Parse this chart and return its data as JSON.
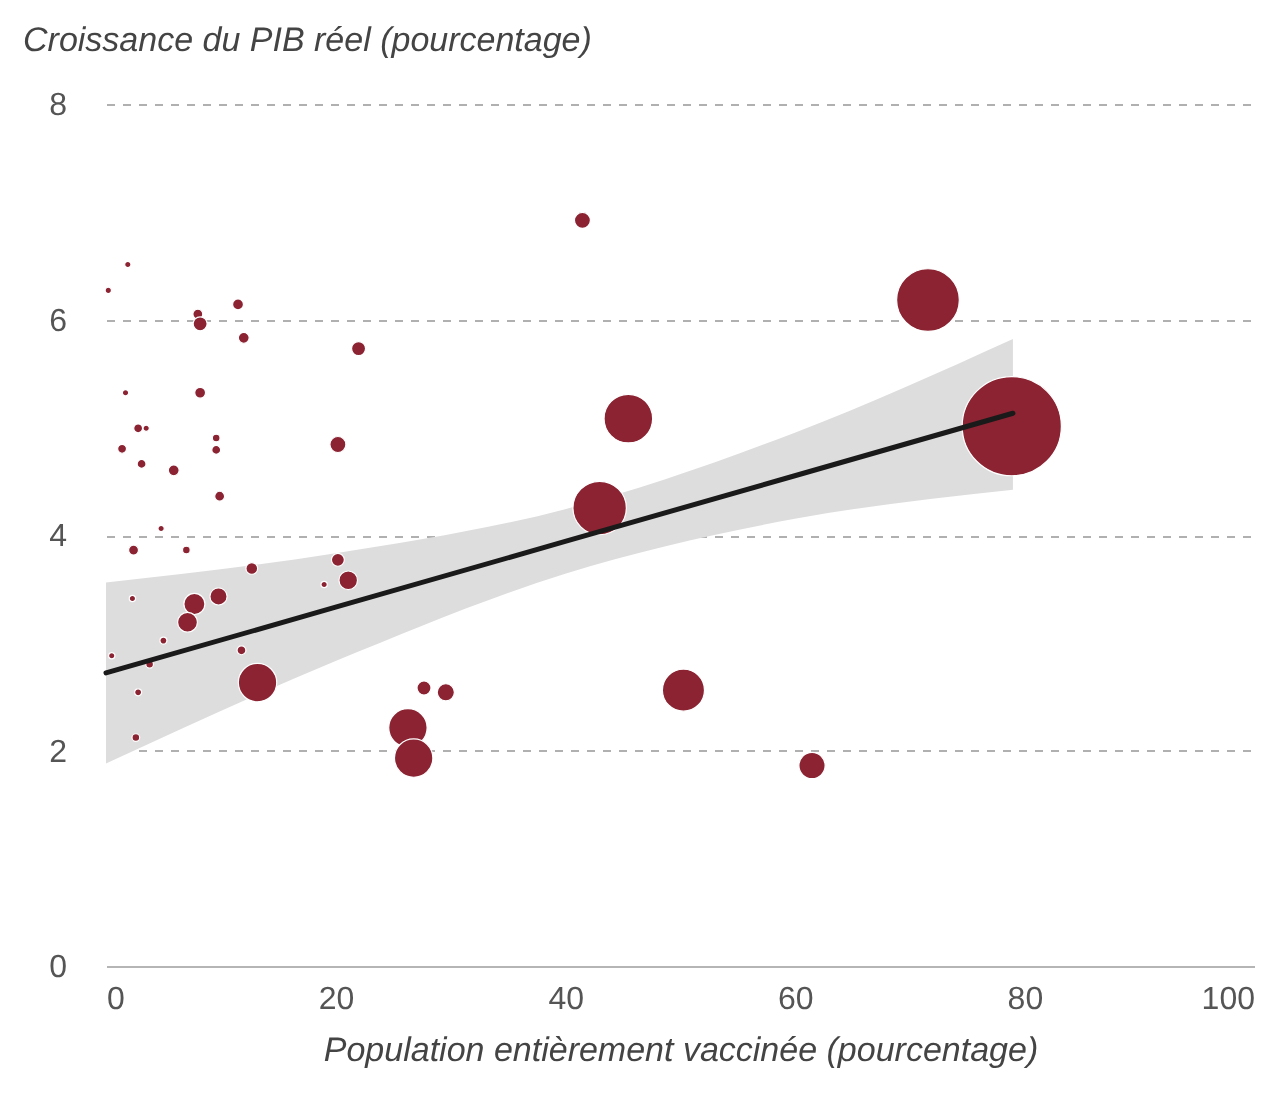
{
  "chart_data": {
    "type": "bubble",
    "ylabel": "Croissance du PIB réel (pourcentage)",
    "xlabel": "Population entièrement vaccinée (pourcentage)",
    "xlim": [
      0,
      100
    ],
    "xticks": [
      0,
      20,
      40,
      60,
      80,
      100
    ],
    "ylim": [
      0,
      8
    ],
    "yticks": [
      0,
      2,
      4,
      6,
      8
    ],
    "grid": "y",
    "series": [
      {
        "type": "bubble",
        "color": "#8b2332",
        "x": [
          1.9,
          0.2,
          8.0,
          8.2,
          11.5,
          12.0,
          22.0,
          1.7,
          8.2,
          2.8,
          3.5,
          9.6,
          1.4,
          9.6,
          20.2,
          3.1,
          5.9,
          9.9,
          4.8,
          2.4,
          7.0,
          12.7,
          20.2,
          21.1,
          19.0,
          2.3,
          9.8,
          7.7,
          7.1,
          5.0,
          0.5,
          3.8,
          11.8,
          13.2,
          2.8,
          2.6,
          27.7,
          29.6,
          26.3,
          26.8,
          41.5,
          45.5,
          43.0,
          71.6,
          78.9,
          61.5,
          50.3
        ],
        "values": [
          6.51,
          6.27,
          6.05,
          5.96,
          6.14,
          5.83,
          5.73,
          5.32,
          5.32,
          4.99,
          4.99,
          4.9,
          4.8,
          4.79,
          4.84,
          4.66,
          4.6,
          4.36,
          4.06,
          3.86,
          3.86,
          3.69,
          3.77,
          3.58,
          3.54,
          3.41,
          3.43,
          3.36,
          3.19,
          3.02,
          2.88,
          2.8,
          2.93,
          2.63,
          2.54,
          2.12,
          2.58,
          2.54,
          2.21,
          1.93,
          6.92,
          5.08,
          4.25,
          6.18,
          5.01,
          1.86,
          2.56
        ],
        "sizes": [
          0.004,
          0.004,
          0.01,
          0.02,
          0.012,
          0.012,
          0.02,
          0.004,
          0.012,
          0.008,
          0.004,
          0.006,
          0.008,
          0.008,
          0.026,
          0.008,
          0.012,
          0.01,
          0.004,
          0.01,
          0.006,
          0.014,
          0.017,
          0.035,
          0.004,
          0.004,
          0.03,
          0.045,
          0.04,
          0.005,
          0.004,
          0.006,
          0.008,
          0.15,
          0.005,
          0.006,
          0.02,
          0.03,
          0.15,
          0.15,
          0.026,
          0.24,
          0.29,
          0.4,
          1,
          0.07,
          0.18
        ]
      },
      {
        "type": "line",
        "color": "#1a1a1a",
        "x": [
          0,
          20,
          40,
          60,
          79
        ],
        "values": [
          2.72,
          3.33,
          3.94,
          4.55,
          5.13
        ],
        "lower": [
          1.88,
          2.83,
          3.64,
          4.15,
          4.42
        ],
        "upper": [
          3.56,
          3.83,
          4.24,
          4.95,
          5.82
        ]
      }
    ]
  }
}
